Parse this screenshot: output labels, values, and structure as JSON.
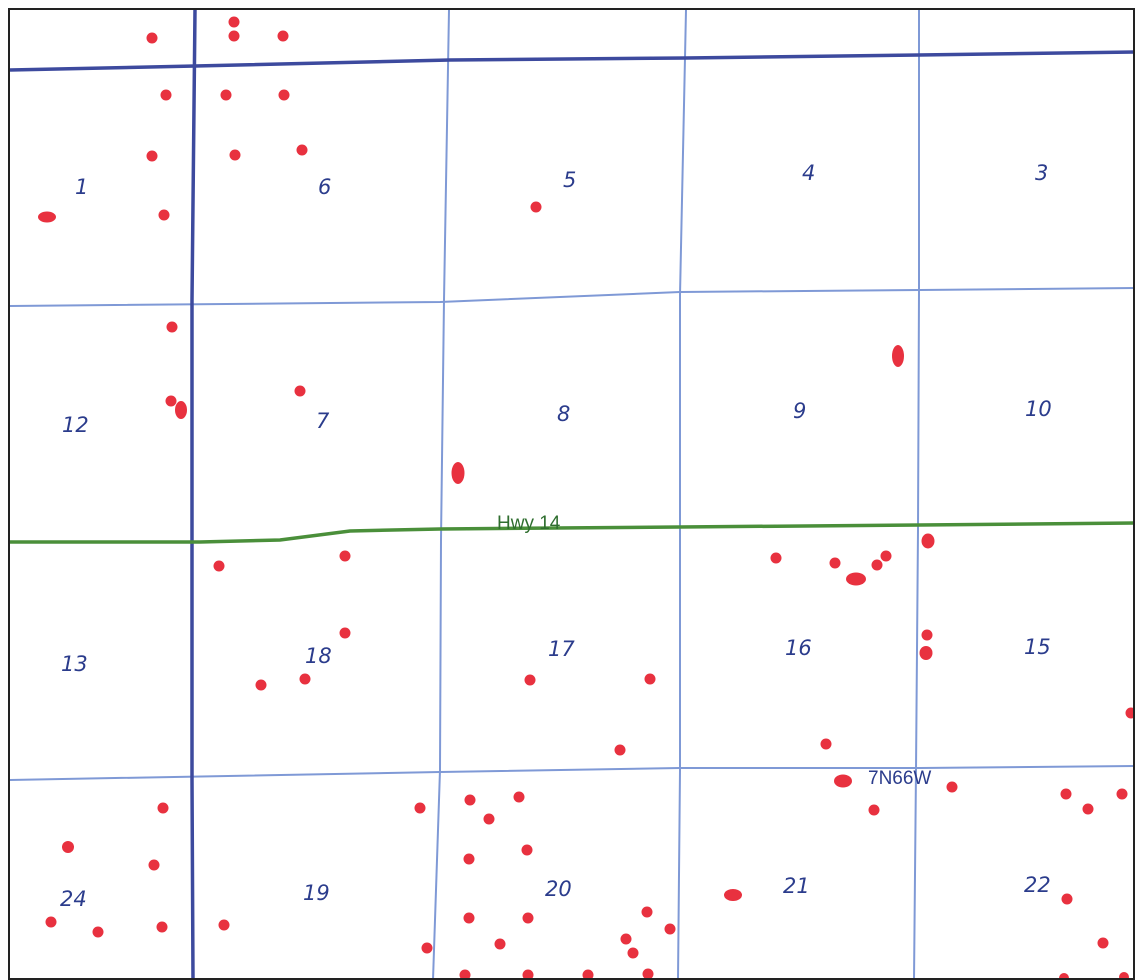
{
  "map": {
    "road_label": "Hwy 14",
    "township_label": "7N66W",
    "colors": {
      "section_line": "#7f99d6",
      "township_line": "#3d4a9e",
      "highway": "#4a8f3a",
      "well": "#e8313f",
      "label": "#2b3c8c",
      "frame": "#222222"
    },
    "sections": [
      {
        "label": "1"
      },
      {
        "label": "6"
      },
      {
        "label": "5"
      },
      {
        "label": "4"
      },
      {
        "label": "3"
      },
      {
        "label": "12"
      },
      {
        "label": "7"
      },
      {
        "label": "8"
      },
      {
        "label": "9"
      },
      {
        "label": "10"
      },
      {
        "label": "13"
      },
      {
        "label": "18"
      },
      {
        "label": "17"
      },
      {
        "label": "16"
      },
      {
        "label": "15"
      },
      {
        "label": "24"
      },
      {
        "label": "19"
      },
      {
        "label": "20"
      },
      {
        "label": "21"
      },
      {
        "label": "22"
      }
    ]
  }
}
